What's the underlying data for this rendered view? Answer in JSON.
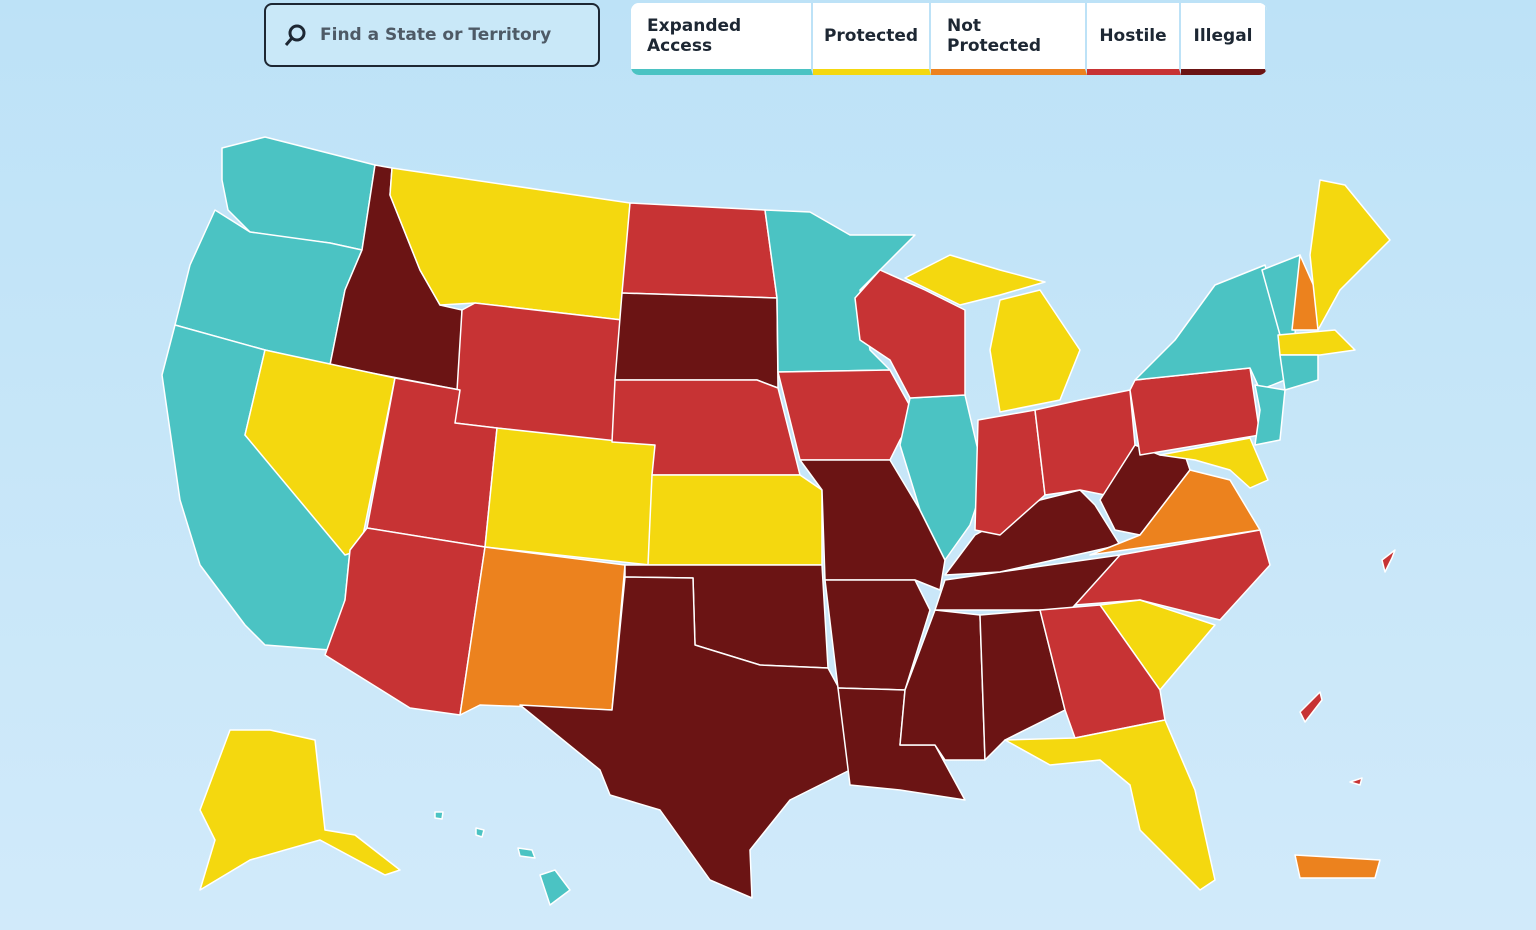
{
  "search": {
    "placeholder": "Find a State or Territory"
  },
  "legend": [
    {
      "label": "Expanded Access",
      "color": "#4bc3c3"
    },
    {
      "label": "Protected",
      "color": "#f4d80f"
    },
    {
      "label": "Not Protected",
      "color": "#ec821e"
    },
    {
      "label": "Hostile",
      "color": "#c73334"
    },
    {
      "label": "Illegal",
      "color": "#6b1414"
    }
  ]
}
